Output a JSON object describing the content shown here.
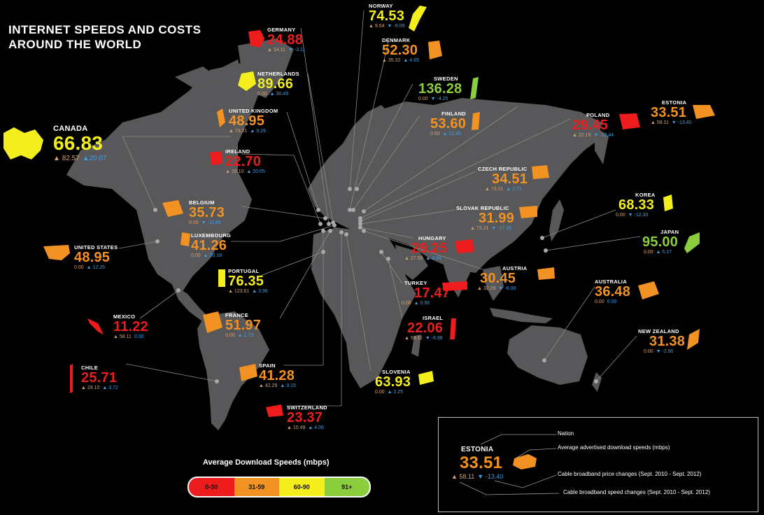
{
  "title_line1": "INTERNET SPEEDS AND COSTS",
  "title_line2": "AROUND THE WORLD",
  "legend": {
    "title": "Average Download Speeds (mbps)",
    "ranges": [
      {
        "label": "0-30",
        "color": "#ee1c1c"
      },
      {
        "label": "31-59",
        "color": "#f29222"
      },
      {
        "label": "60-90",
        "color": "#f4ee1c"
      },
      {
        "label": "91+",
        "color": "#8ccd3e"
      }
    ]
  },
  "key": {
    "nation": "Nation",
    "speed_note": "Average advertised download speeds (mbps)",
    "price_note": "Cable broadband price changes (Sept. 2010 - Sept. 2012)",
    "speedchange_note": "Cable broadband speed changes (Sept. 2010 - Sept. 2012)",
    "example": {
      "name": "ESTONIA",
      "speed": "33.51",
      "price": "58.11",
      "speed_change": "-13.40"
    }
  },
  "countries": [
    {
      "name": "CANADA",
      "speed": "66.83",
      "price": "82.57",
      "speed_change": "20.07",
      "tier": "yellow",
      "big": true
    },
    {
      "name": "UNITED STATES",
      "speed": "48.95",
      "price": "0.00",
      "speed_change": "12.26",
      "tier": "orange"
    },
    {
      "name": "MEXICO",
      "speed": "11.22",
      "price": "58.11",
      "speed_change": "0.00",
      "tier": "red"
    },
    {
      "name": "CHILE",
      "speed": "25.71",
      "price": "29.10",
      "speed_change": "3.72",
      "tier": "red"
    },
    {
      "name": "GERMANY",
      "speed": "24.88",
      "price": "14.11",
      "speed_change": "-3.11",
      "tier": "red"
    },
    {
      "name": "NETHERLANDS",
      "speed": "89.66",
      "price": "0.00",
      "speed_change": "30.49",
      "tier": "yellow"
    },
    {
      "name": "UNITED KINGDOM",
      "speed": "48.95",
      "price": "73.21",
      "speed_change": "9.29",
      "tier": "orange"
    },
    {
      "name": "IRELAND",
      "speed": "22.70",
      "price": "29.10",
      "speed_change": "20.05",
      "tier": "red"
    },
    {
      "name": "BELGIUM",
      "speed": "35.73",
      "price": "0.00",
      "speed_change": "-11.85",
      "tier": "orange"
    },
    {
      "name": "LUXEMBOURG",
      "speed": "41.26",
      "price": "0.00",
      "speed_change": "20.18",
      "tier": "orange"
    },
    {
      "name": "PORTUGAL",
      "speed": "76.35",
      "price": "123.61",
      "speed_change": "3.96",
      "tier": "yellow"
    },
    {
      "name": "FRANCE",
      "speed": "51.97",
      "price": "0.00",
      "speed_change": "1.73",
      "tier": "orange"
    },
    {
      "name": "SPAIN",
      "speed": "41.28",
      "price": "42.29",
      "speed_change": "9.15",
      "tier": "orange"
    },
    {
      "name": "SWITZERLAND",
      "speed": "23.37",
      "price": "10.49",
      "speed_change": "4.06",
      "tier": "red"
    },
    {
      "name": "NORWAY",
      "speed": "74.53",
      "price": "9.54",
      "speed_change": "-9.09",
      "tier": "yellow"
    },
    {
      "name": "DENMARK",
      "speed": "52.30",
      "price": "35.32",
      "speed_change": "4.65",
      "tier": "orange"
    },
    {
      "name": "SWEDEN",
      "speed": "136.28",
      "price": "0.00",
      "speed_change": "-4.25",
      "tier": "green"
    },
    {
      "name": "FINLAND",
      "speed": "53.60",
      "price": "0.00",
      "speed_change": "21.45",
      "tier": "orange"
    },
    {
      "name": "ESTONIA",
      "speed": "33.51",
      "price": "58.11",
      "speed_change": "-13.40",
      "tier": "orange"
    },
    {
      "name": "POLAND",
      "speed": "29.45",
      "price": "22.19",
      "speed_change": "-12.44",
      "tier": "red"
    },
    {
      "name": "CZECH REPUBLIC",
      "speed": "34.51",
      "price": "73.21",
      "speed_change": "2.71",
      "tier": "orange"
    },
    {
      "name": "SLOVAK REPUBLIC",
      "speed": "31.99",
      "price": "73.21",
      "speed_change": "-17.16",
      "tier": "orange"
    },
    {
      "name": "HUNGARY",
      "speed": "29.25",
      "price": "27.58",
      "speed_change": "4.64",
      "tier": "red"
    },
    {
      "name": "AUSTRIA",
      "speed": "30.45",
      "price": "32.29",
      "speed_change": "-6.00",
      "tier": "orange"
    },
    {
      "name": "TURKEY",
      "speed": "17.47",
      "price": "0.00",
      "speed_change": "0.56",
      "tier": "red"
    },
    {
      "name": "ISRAEL",
      "speed": "22.06",
      "price": "58.11",
      "speed_change": "-6.98",
      "tier": "red"
    },
    {
      "name": "SLOVENIA",
      "speed": "63.93",
      "price": "0.00",
      "speed_change": "2.25",
      "tier": "yellow"
    },
    {
      "name": "KOREA",
      "speed": "68.33",
      "price": "0.00",
      "speed_change": "-12.30",
      "tier": "yellow"
    },
    {
      "name": "JAPAN",
      "speed": "95.00",
      "price": "0.00",
      "speed_change": "5.17",
      "tier": "green"
    },
    {
      "name": "AUSTRALIA",
      "speed": "36.48",
      "price": "0.00",
      "speed_change": "0.00",
      "tier": "orange"
    },
    {
      "name": "NEW ZEALAND",
      "speed": "31.38",
      "price": "0.00",
      "speed_change": "-2.90",
      "tier": "orange"
    }
  ]
}
